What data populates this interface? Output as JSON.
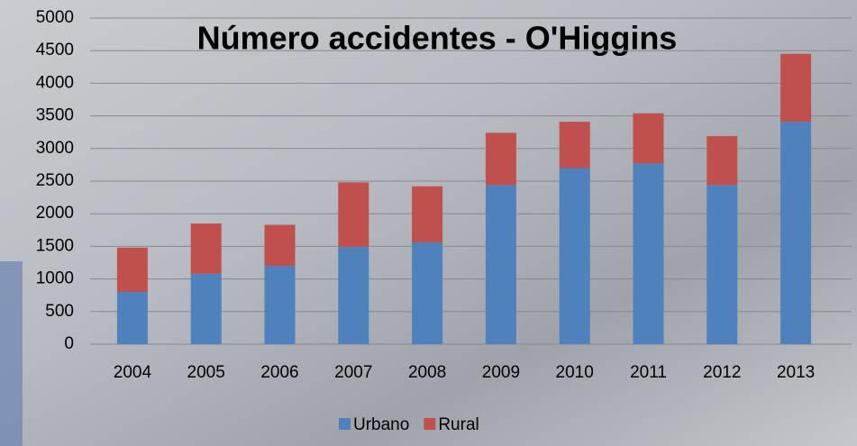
{
  "chart_data": {
    "type": "stacked_bar",
    "title": "Número accidentes - O'Higgins",
    "categories": [
      "2004",
      "2005",
      "2006",
      "2007",
      "2008",
      "2009",
      "2010",
      "2011",
      "2012",
      "2013"
    ],
    "series": [
      {
        "name": "Urbano",
        "color": "#4f81bd",
        "values": [
          800,
          1080,
          1200,
          1490,
          1560,
          2440,
          2700,
          2770,
          2440,
          3410
        ]
      },
      {
        "name": "Rural",
        "color": "#c0504d",
        "values": [
          680,
          770,
          630,
          990,
          860,
          800,
          710,
          770,
          750,
          1040
        ]
      }
    ],
    "ylim": [
      0,
      5000
    ],
    "yticks": [
      0,
      500,
      1000,
      1500,
      2000,
      2500,
      3000,
      3500,
      4000,
      4500,
      5000
    ],
    "grid": true,
    "legend": "bottom"
  }
}
